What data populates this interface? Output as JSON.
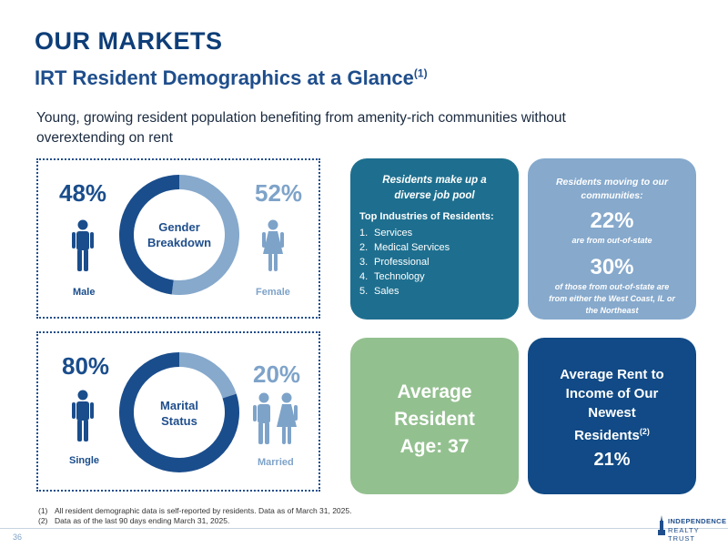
{
  "header": {
    "title": "OUR MARKETS",
    "subtitle": "IRT Resident Demographics at a Glance",
    "subtitle_note": "(1)",
    "intro": "Young, growing resident population benefiting from amenity-rich communities without overextending on rent"
  },
  "gender": {
    "male_pct": "48%",
    "female_pct": "52%",
    "male_label": "Male",
    "female_label": "Female",
    "center_line1": "Gender",
    "center_line2": "Breakdown",
    "male_share": 0.48,
    "female_share": 0.52
  },
  "marital": {
    "single_pct": "80%",
    "married_pct": "20%",
    "single_label": "Single",
    "married_label": "Married",
    "center_line1": "Marital",
    "center_line2": "Status",
    "single_share": 0.8,
    "married_share": 0.2
  },
  "jobs": {
    "head_line1": "Residents make up a",
    "head_line2": "diverse job pool",
    "subhead": "Top Industries of Residents:",
    "items": [
      {
        "num": "1.",
        "label": "Services"
      },
      {
        "num": "2.",
        "label": "Medical Services"
      },
      {
        "num": "3.",
        "label": "Professional"
      },
      {
        "num": "4.",
        "label": "Technology"
      },
      {
        "num": "5.",
        "label": "Sales"
      }
    ]
  },
  "moving": {
    "head_line1": "Residents moving to our",
    "head_line2": "communities:",
    "stat1": "22%",
    "stat1_desc": "are from out-of-state",
    "stat2": "30%",
    "stat2_desc_line1": "of those from out-of-state are",
    "stat2_desc_line2": "from either the West Coast, IL or",
    "stat2_desc_line3": "the Northeast"
  },
  "age": {
    "line1": "Average",
    "line2": "Resident",
    "line3": "Age:",
    "value": "37"
  },
  "rent": {
    "line1": "Average Rent to",
    "line2": "Income of Our",
    "line3": "Newest",
    "line4": "Residents",
    "note": "(2)",
    "value": "21%"
  },
  "footnotes": [
    {
      "num": "(1)",
      "text": "All resident demographic data is self-reported by residents. Data as of March 31, 2025."
    },
    {
      "num": "(2)",
      "text": "Data as of the last 90 days ending March 31, 2025."
    }
  ],
  "footer": {
    "page_number": "36",
    "logo_line1": "INDEPENDENCE",
    "logo_line2": "REALTY TRUST"
  },
  "colors": {
    "dark_blue": "#1a4d8c",
    "light_blue": "#86a9cc",
    "teal": "#1e6f8f",
    "green": "#93c08f",
    "navy": "#114a86"
  }
}
